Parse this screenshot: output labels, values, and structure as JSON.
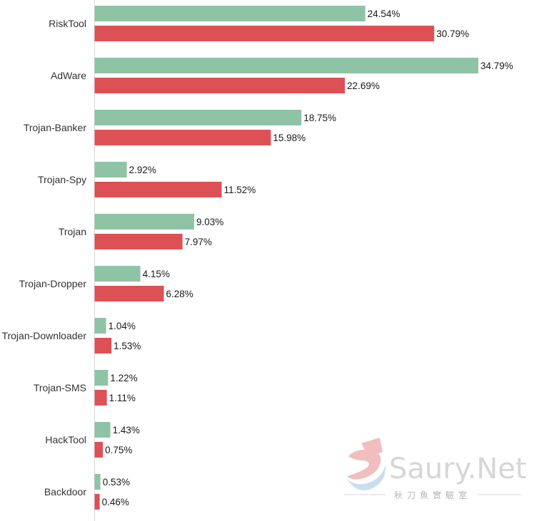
{
  "colors": {
    "series_a": "#8fc3a6",
    "series_b": "#dd5156",
    "axis": "#d9d9d9"
  },
  "watermark": {
    "name": "Saury.Net",
    "sub": "秋刀魚實驗室"
  },
  "chart_data": {
    "type": "bar",
    "orientation": "horizontal",
    "categories": [
      "RiskTool",
      "AdWare",
      "Trojan-Banker",
      "Trojan-Spy",
      "Trojan",
      "Trojan-Dropper",
      "Trojan-Downloader",
      "Trojan-SMS",
      "HackTool",
      "Backdoor"
    ],
    "series": [
      {
        "values": [
          24.54,
          34.79,
          18.75,
          2.92,
          9.03,
          4.15,
          1.04,
          1.22,
          1.43,
          0.53
        ],
        "labels": [
          "24.54%",
          "34.79%",
          "18.75%",
          "2.92%",
          "9.03%",
          "4.15%",
          "1.04%",
          "1.22%",
          "1.43%",
          "0.53%"
        ]
      },
      {
        "values": [
          30.79,
          22.69,
          15.98,
          11.52,
          7.97,
          6.28,
          1.53,
          1.11,
          0.75,
          0.46
        ],
        "labels": [
          "30.79%",
          "22.69%",
          "15.98%",
          "11.52%",
          "7.97%",
          "6.28%",
          "1.53%",
          "1.11%",
          "0.75%",
          "0.46%"
        ]
      }
    ],
    "xlim": [
      0,
      35
    ],
    "grid": false,
    "legend": "none",
    "title": "",
    "xlabel": "",
    "ylabel": ""
  }
}
